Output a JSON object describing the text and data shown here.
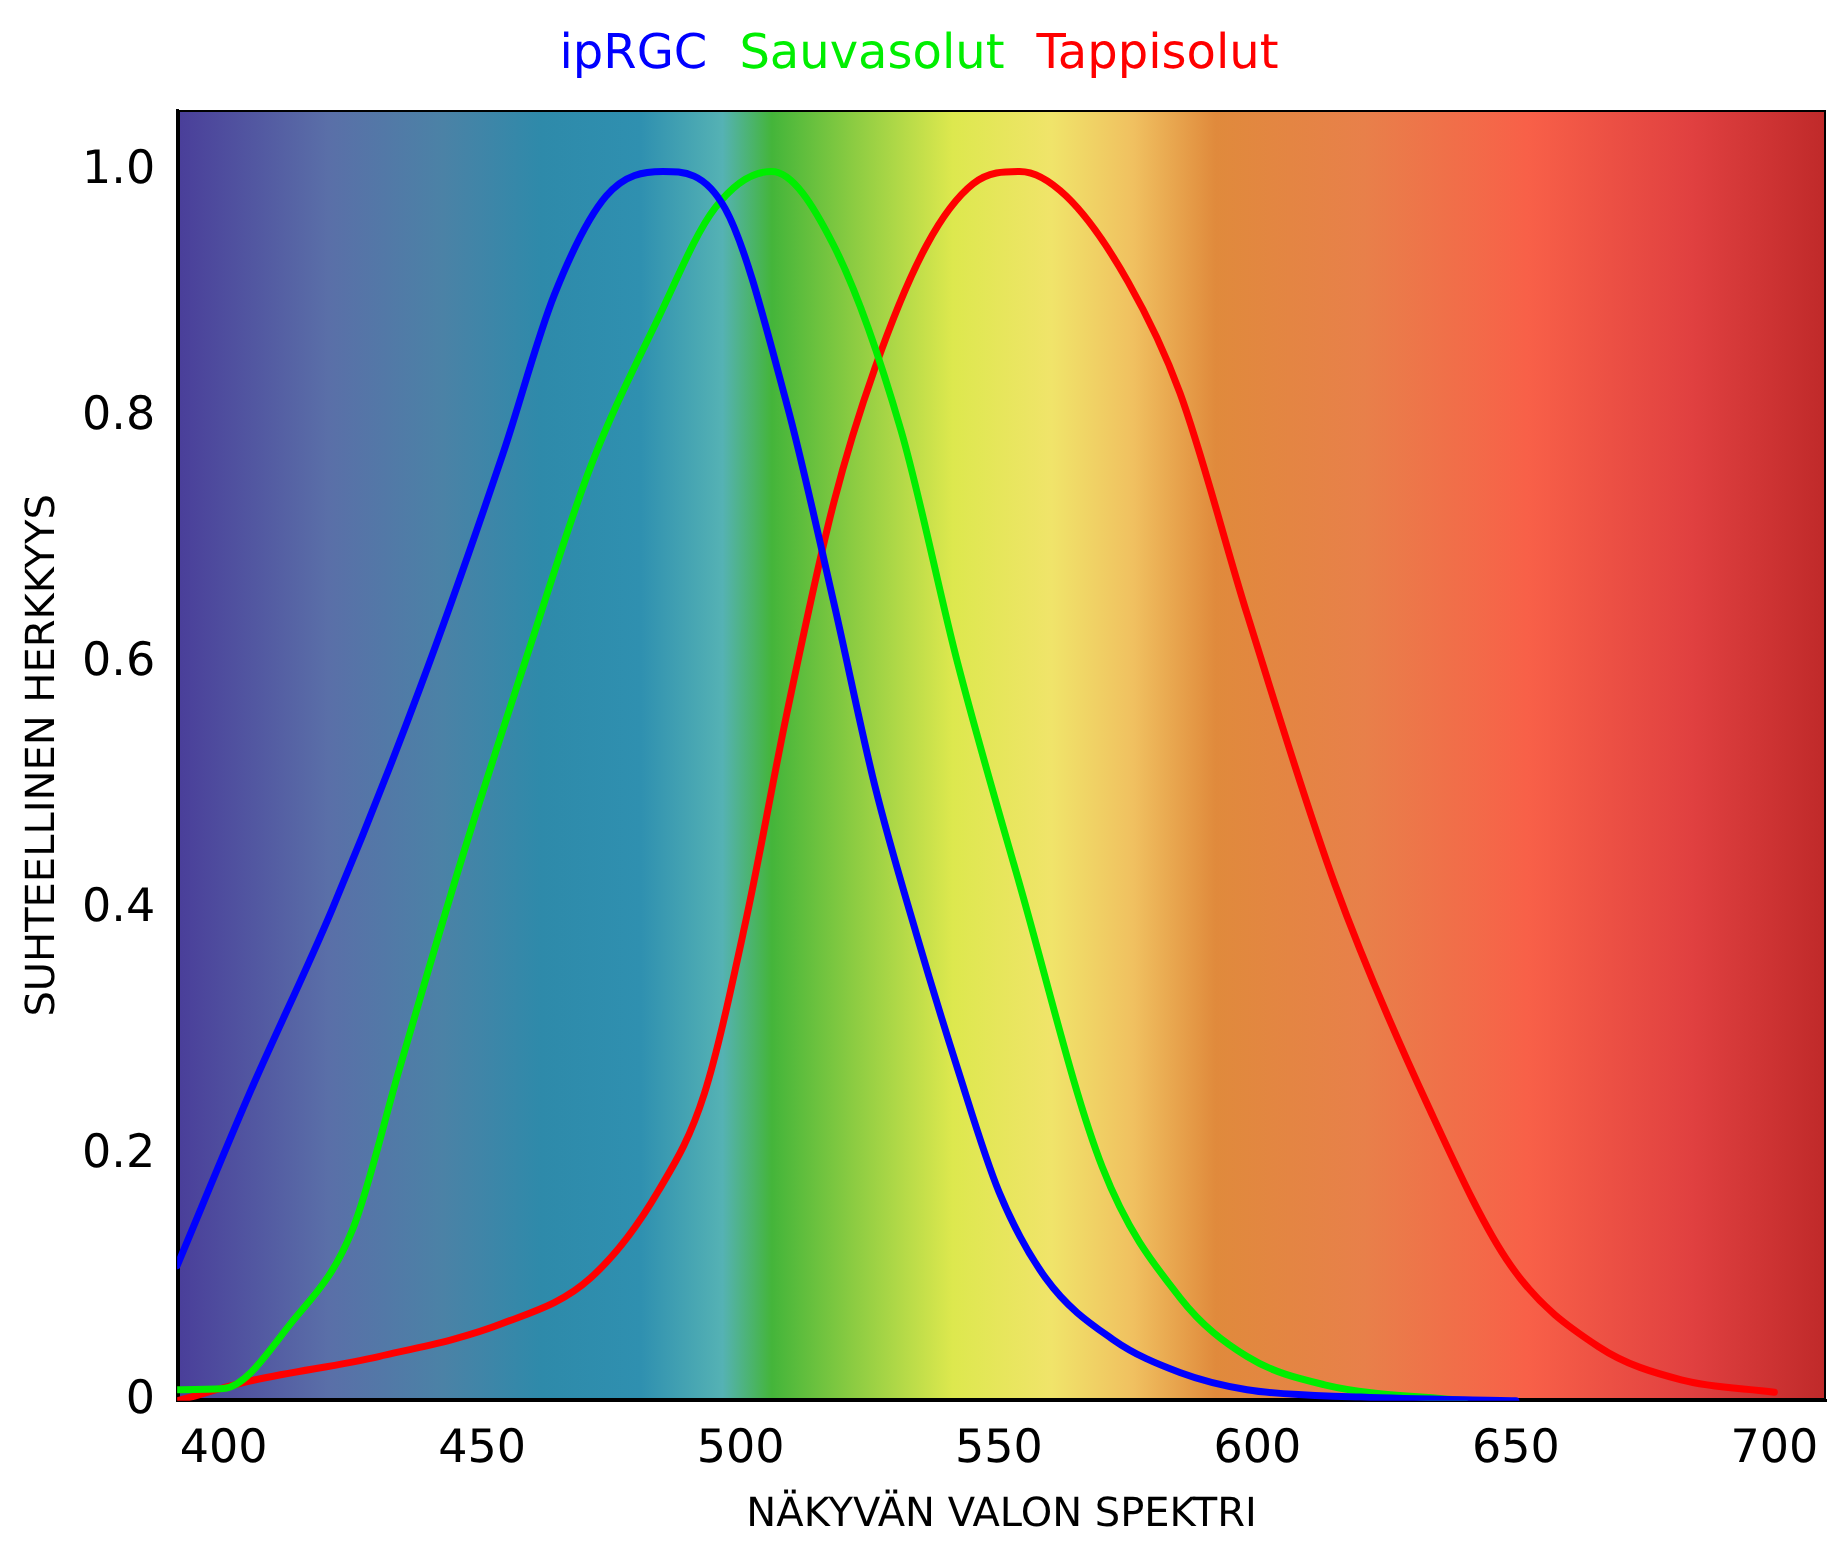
{
  "chart_data": {
    "type": "line",
    "xlabel": "NÄKYVÄN VALON SPEKTRI",
    "ylabel": "SUHTEELLINEN HERKKYYS",
    "xlim": [
      391,
      710
    ],
    "ylim": [
      0,
      1.05
    ],
    "xticks": [
      400,
      450,
      500,
      550,
      600,
      650,
      700
    ],
    "yticks": [
      {
        "value": 0,
        "label": "0"
      },
      {
        "value": 0.2,
        "label": "0.2"
      },
      {
        "value": 0.4,
        "label": "0.4"
      },
      {
        "value": 0.6,
        "label": "0.6"
      },
      {
        "value": 0.8,
        "label": "0.8"
      },
      {
        "value": 1,
        "label": "1.0"
      }
    ],
    "grid": false,
    "legend": "top",
    "marker": "none",
    "line_style": "solid",
    "series": [
      {
        "name": "ipRGC",
        "color": "#0000ff",
        "x": [
          391,
          405,
          421,
          438,
          454,
          464,
          474,
          485,
          497,
          509,
          518,
          526,
          534,
          542,
          550,
          559,
          572,
          585,
          598,
          620,
          650
        ],
        "values": [
          0.11,
          0.25,
          0.4,
          0.58,
          0.77,
          0.9,
          0.98,
          1.0,
          0.97,
          0.81,
          0.65,
          0.5,
          0.38,
          0.27,
          0.17,
          0.1,
          0.05,
          0.023,
          0.009,
          0.003,
          0
        ]
      },
      {
        "name": "Sauvasolut",
        "color": "#00ee00",
        "x": [
          391,
          400,
          413,
          425,
          434,
          446,
          459,
          471,
          484,
          495,
          506,
          518,
          531,
          542,
          554,
          570,
          585,
          598,
          613,
          640
        ],
        "values": [
          0.009,
          0.01,
          0.063,
          0.14,
          0.27,
          0.44,
          0.61,
          0.76,
          0.88,
          0.97,
          1.0,
          0.94,
          0.79,
          0.6,
          0.42,
          0.19,
          0.084,
          0.036,
          0.013,
          0
        ]
      },
      {
        "name": "Tappisolut",
        "color": "#ff0000",
        "x": [
          391,
          405,
          430,
          454,
          471,
          484,
          493,
          501,
          509,
          518,
          526,
          536,
          545,
          554,
          563,
          575,
          585,
          598,
          615,
          633,
          649,
          666,
          682,
          700
        ],
        "values": [
          0,
          0.016,
          0.036,
          0.063,
          0.1,
          0.17,
          0.25,
          0.39,
          0.56,
          0.73,
          0.84,
          0.94,
          0.99,
          1.0,
          0.98,
          0.91,
          0.82,
          0.64,
          0.42,
          0.24,
          0.11,
          0.044,
          0.017,
          0.007
        ]
      }
    ]
  }
}
